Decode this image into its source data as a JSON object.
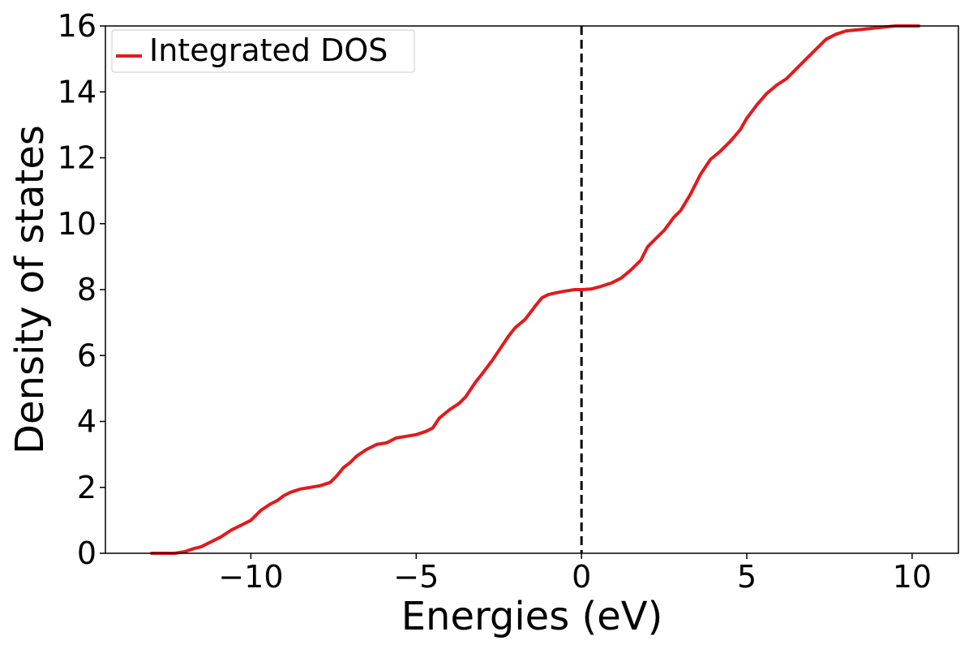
{
  "chart_data": {
    "type": "line",
    "title": "",
    "xlabel": "Energies (eV)",
    "ylabel": "Density of states",
    "xlim": [
      -14.4,
      11.4
    ],
    "ylim": [
      0,
      16
    ],
    "xticks": [
      {
        "value": -10,
        "label": "−10"
      },
      {
        "value": -5,
        "label": "−5"
      },
      {
        "value": 0,
        "label": "0"
      },
      {
        "value": 5,
        "label": "5"
      },
      {
        "value": 10,
        "label": "10"
      }
    ],
    "yticks": [
      {
        "value": 0,
        "label": "0"
      },
      {
        "value": 2,
        "label": "2"
      },
      {
        "value": 4,
        "label": "4"
      },
      {
        "value": 6,
        "label": "6"
      },
      {
        "value": 8,
        "label": "8"
      },
      {
        "value": 10,
        "label": "10"
      },
      {
        "value": 12,
        "label": "12"
      },
      {
        "value": 14,
        "label": "14"
      },
      {
        "value": 16,
        "label": "16"
      }
    ],
    "grid": false,
    "legend_position": "top-left",
    "reference_lines": [
      {
        "orientation": "vertical",
        "x": 0,
        "style": "dashed",
        "color": "#000000"
      }
    ],
    "series": [
      {
        "name": "Integrated DOS",
        "color": "#e31a1c",
        "x": [
          -13.0,
          -12.3,
          -12.0,
          -11.7,
          -11.5,
          -11.2,
          -10.9,
          -10.6,
          -10.3,
          -10.0,
          -9.7,
          -9.4,
          -9.2,
          -9.0,
          -8.8,
          -8.5,
          -8.2,
          -7.9,
          -7.6,
          -7.4,
          -7.2,
          -7.0,
          -6.8,
          -6.5,
          -6.2,
          -5.9,
          -5.6,
          -5.3,
          -5.0,
          -4.7,
          -4.5,
          -4.3,
          -4.0,
          -3.7,
          -3.5,
          -3.2,
          -3.0,
          -2.7,
          -2.4,
          -2.2,
          -2.0,
          -1.7,
          -1.4,
          -1.2,
          -1.0,
          -0.7,
          -0.4,
          -0.2,
          0.0,
          0.3,
          0.6,
          0.9,
          1.2,
          1.5,
          1.8,
          2.0,
          2.3,
          2.5,
          2.8,
          3.0,
          3.3,
          3.6,
          3.9,
          4.2,
          4.5,
          4.8,
          5.0,
          5.3,
          5.6,
          5.9,
          6.2,
          6.5,
          6.8,
          7.1,
          7.4,
          7.7,
          8.0,
          8.5,
          9.0,
          9.5,
          10.2
        ],
        "y": [
          0.0,
          0.0,
          0.05,
          0.15,
          0.2,
          0.35,
          0.5,
          0.7,
          0.85,
          1.0,
          1.3,
          1.5,
          1.6,
          1.75,
          1.85,
          1.95,
          2.0,
          2.05,
          2.15,
          2.35,
          2.6,
          2.75,
          2.95,
          3.15,
          3.3,
          3.35,
          3.5,
          3.55,
          3.6,
          3.7,
          3.8,
          4.1,
          4.35,
          4.55,
          4.75,
          5.2,
          5.45,
          5.85,
          6.3,
          6.6,
          6.85,
          7.1,
          7.5,
          7.75,
          7.85,
          7.92,
          7.97,
          8.0,
          8.0,
          8.02,
          8.1,
          8.2,
          8.35,
          8.6,
          8.9,
          9.3,
          9.6,
          9.8,
          10.2,
          10.4,
          10.9,
          11.5,
          11.95,
          12.2,
          12.5,
          12.85,
          13.2,
          13.6,
          13.95,
          14.2,
          14.4,
          14.7,
          15.0,
          15.3,
          15.6,
          15.75,
          15.85,
          15.9,
          15.95,
          16.0,
          16.0
        ]
      }
    ]
  }
}
